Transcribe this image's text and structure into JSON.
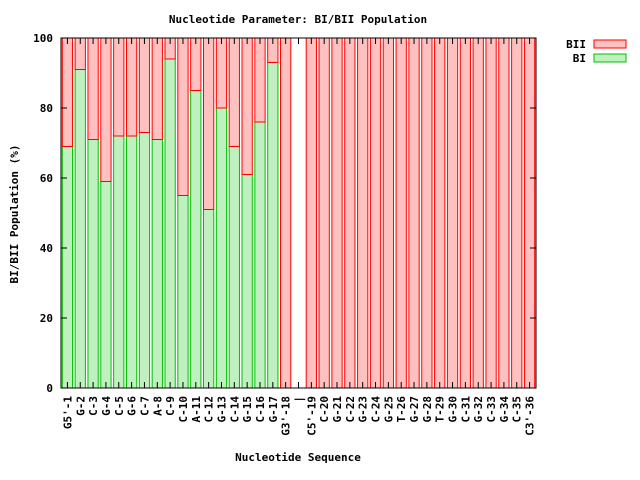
{
  "chart_data": {
    "type": "bar",
    "title": "Nucleotide Parameter: BI/BII Population",
    "xlabel": "Nucleotide Sequence",
    "ylabel": "BI/BII Population (%)",
    "ylim": [
      0,
      100
    ],
    "yticks": [
      0,
      20,
      40,
      60,
      80,
      100
    ],
    "grid": false,
    "legend_position": "top-right",
    "stacked": true,
    "categories": [
      "G5'-1",
      "G-2",
      "C-3",
      "G-4",
      "C-5",
      "G-6",
      "C-7",
      "A-8",
      "C-9",
      "C-10",
      "A-11",
      "C-12",
      "G-13",
      "C-14",
      "G-15",
      "C-16",
      "G-17",
      "G3'-18",
      "|",
      "C5'-19",
      "C-20",
      "G-21",
      "C-22",
      "G-23",
      "C-24",
      "G-25",
      "T-26",
      "G-27",
      "G-28",
      "T-29",
      "G-30",
      "C-31",
      "G-32",
      "C-33",
      "G-34",
      "C-35",
      "C3'-36"
    ],
    "series": [
      {
        "name": "BII",
        "fill": "#ffc0c0",
        "stroke": "#ff0000",
        "values": [
          31,
          9,
          29,
          41,
          28,
          28,
          27,
          29,
          6,
          45,
          15,
          49,
          20,
          31,
          39,
          24,
          7,
          100,
          null,
          100,
          100,
          100,
          100,
          100,
          100,
          100,
          100,
          100,
          100,
          100,
          100,
          100,
          100,
          100,
          100,
          100,
          100
        ]
      },
      {
        "name": "BI",
        "fill": "#c0f0c0",
        "stroke": "#00c000",
        "values": [
          69,
          91,
          71,
          59,
          72,
          72,
          73,
          71,
          94,
          55,
          85,
          51,
          80,
          69,
          61,
          76,
          93,
          0,
          null,
          0,
          0,
          0,
          0,
          0,
          0,
          0,
          0,
          0,
          0,
          0,
          0,
          0,
          0,
          0,
          0,
          0,
          0
        ]
      }
    ]
  }
}
